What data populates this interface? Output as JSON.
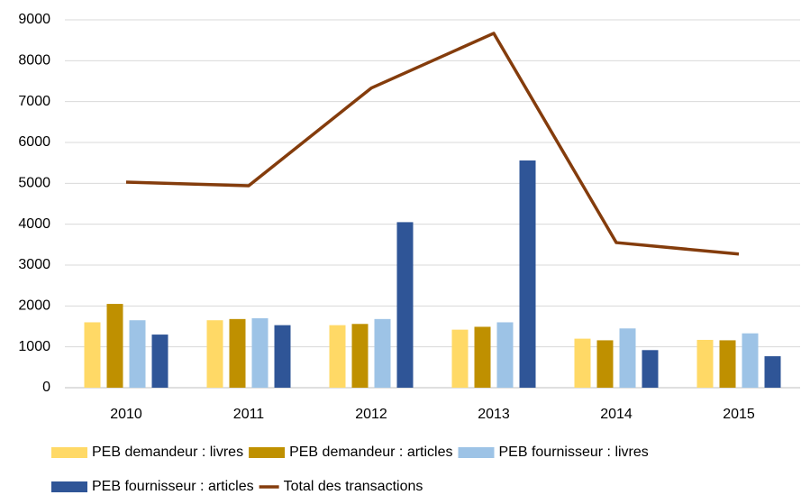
{
  "chart_data": {
    "type": "bar",
    "categories": [
      "2010",
      "2011",
      "2012",
      "2013",
      "2014",
      "2015"
    ],
    "series": [
      {
        "name": "PEB demandeur : livres",
        "color": "#ffd966",
        "values": [
          1600,
          1650,
          1530,
          1420,
          1200,
          1170
        ]
      },
      {
        "name": "PEB demandeur : articles",
        "color": "#bf9000",
        "values": [
          2050,
          1680,
          1560,
          1490,
          1160,
          1160
        ]
      },
      {
        "name": "PEB fournisseur : livres",
        "color": "#9dc3e6",
        "values": [
          1650,
          1700,
          1680,
          1600,
          1450,
          1330
        ]
      },
      {
        "name": "PEB fournisseur : articles",
        "color": "#2f5597",
        "values": [
          1300,
          1530,
          4050,
          5560,
          920,
          770
        ]
      },
      {
        "name": "Total des transactions",
        "color": "#843c0c",
        "type": "line",
        "values": [
          5030,
          4940,
          7330,
          8670,
          3550,
          3270
        ]
      }
    ],
    "ylim": [
      0,
      9000
    ],
    "yticks": [
      0,
      1000,
      2000,
      3000,
      4000,
      5000,
      6000,
      7000,
      8000,
      9000
    ],
    "grid": true,
    "legend": "bottom"
  }
}
